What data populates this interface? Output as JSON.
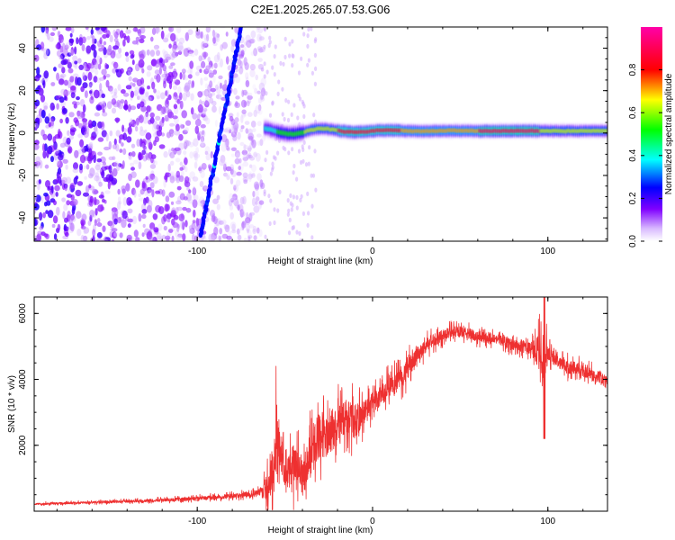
{
  "figure": {
    "title": "C2E1.2025.265.07.53.G06"
  },
  "chart_data": [
    {
      "type": "heatmap",
      "title": "C2E1.2025.265.07.53.G06",
      "xlabel": "Height of straight line (km)",
      "ylabel": "Frequency (Hz)",
      "xlim": [
        -193,
        134
      ],
      "ylim": [
        -51,
        50
      ],
      "x_ticks": [
        -100,
        0,
        100
      ],
      "y_ticks": [
        -40,
        -20,
        0,
        20,
        40
      ],
      "colorbar": {
        "label": "Normalized spectral amplitude",
        "range": [
          0.0,
          1.0
        ],
        "ticks": [
          0.0,
          0.2,
          0.4,
          0.6,
          0.8
        ],
        "tick_labels": [
          "0.0",
          "0.2",
          "0.4",
          "0.6",
          "0.8"
        ],
        "colormap": "purple-blue-cyan-green-yellow-red-magenta"
      },
      "features": [
        {
          "name": "noise-scatter",
          "x_range": [
            -193,
            -62
          ],
          "freq_range": [
            -51,
            50
          ],
          "amplitude": 0.1
        },
        {
          "name": "diagonal-streak",
          "x_start": -98,
          "freq_start": -48,
          "x_end": -75,
          "freq_end": 50,
          "amplitude": 0.25
        },
        {
          "name": "signal-band",
          "x_range": [
            -62,
            134
          ],
          "freq_center": 1,
          "freq_halfwidth": 3.5,
          "amplitude": 0.75
        }
      ]
    },
    {
      "type": "line",
      "xlabel": "Height of straight line (km)",
      "ylabel": "SNR (10 * v/v)",
      "xlim": [
        -193,
        134
      ],
      "ylim": [
        0,
        6500
      ],
      "x_ticks": [
        -100,
        0,
        100
      ],
      "y_ticks": [
        2000,
        4000,
        6000
      ],
      "series": [
        {
          "name": "SNR",
          "color": "#ee3030",
          "x": [
            -193,
            -170,
            -150,
            -130,
            -110,
            -90,
            -75,
            -65,
            -60,
            -57,
            -54,
            -50,
            -45,
            -40,
            -35,
            -30,
            -25,
            -20,
            -15,
            -10,
            -5,
            0,
            5,
            10,
            15,
            20,
            25,
            30,
            35,
            40,
            45,
            50,
            55,
            60,
            65,
            70,
            75,
            80,
            85,
            90,
            95,
            98,
            100,
            105,
            110,
            115,
            120,
            125,
            130,
            134
          ],
          "y": [
            220,
            250,
            280,
            320,
            360,
            420,
            480,
            560,
            700,
            1200,
            2300,
            1100,
            1400,
            1200,
            1700,
            2400,
            2100,
            2600,
            2900,
            2700,
            3000,
            3300,
            3500,
            3700,
            4000,
            4300,
            4700,
            5000,
            5200,
            5350,
            5450,
            5450,
            5400,
            5300,
            5250,
            5250,
            5150,
            5050,
            5000,
            4950,
            4800,
            4600,
            4800,
            4600,
            4400,
            4350,
            4250,
            4150,
            4050,
            3900
          ],
          "noise": [
            60,
            70,
            80,
            90,
            110,
            130,
            160,
            200,
            900,
            1300,
            1600,
            900,
            1400,
            1000,
            1500,
            1600,
            1400,
            1300,
            1100,
            1200,
            800,
            800,
            700,
            800,
            700,
            700,
            500,
            500,
            450,
            400,
            350,
            350,
            350,
            350,
            350,
            350,
            350,
            350,
            350,
            400,
            1200,
            1800,
            500,
            450,
            450,
            450,
            400,
            400,
            400,
            400
          ]
        }
      ]
    }
  ]
}
